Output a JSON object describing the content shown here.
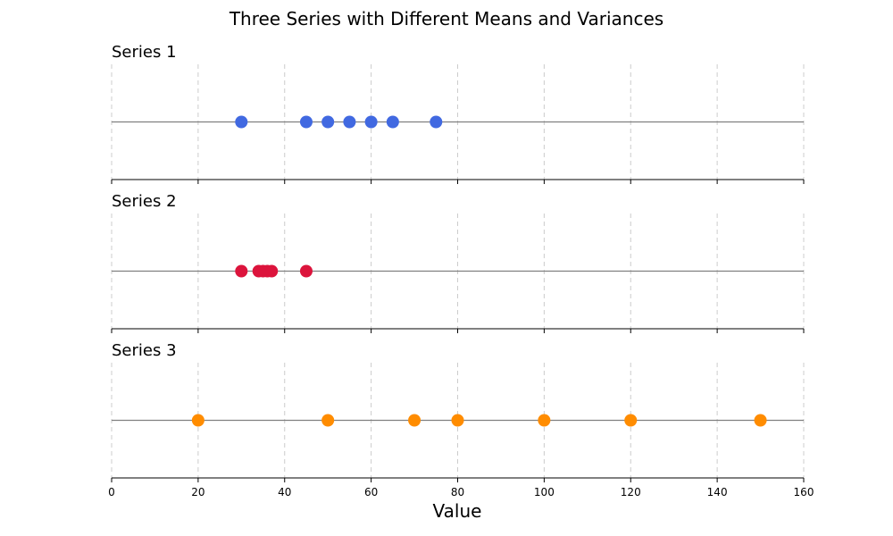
{
  "chart_data": {
    "type": "scatter",
    "title": "Three Series with Different Means and Variances",
    "xlabel": "Value",
    "xlim": [
      0,
      160
    ],
    "xticks": [
      0,
      20,
      40,
      60,
      80,
      100,
      120,
      140,
      160
    ],
    "grid": true,
    "series": [
      {
        "name": "Series 1",
        "color": "#4169E1",
        "values": [
          30,
          45,
          50,
          55,
          60,
          65,
          75
        ]
      },
      {
        "name": "Series 2",
        "color": "#DC143C",
        "values": [
          30,
          34,
          35,
          36,
          37,
          45
        ]
      },
      {
        "name": "Series 3",
        "color": "#FF8C00",
        "values": [
          20,
          50,
          70,
          80,
          100,
          120,
          150
        ]
      }
    ]
  }
}
